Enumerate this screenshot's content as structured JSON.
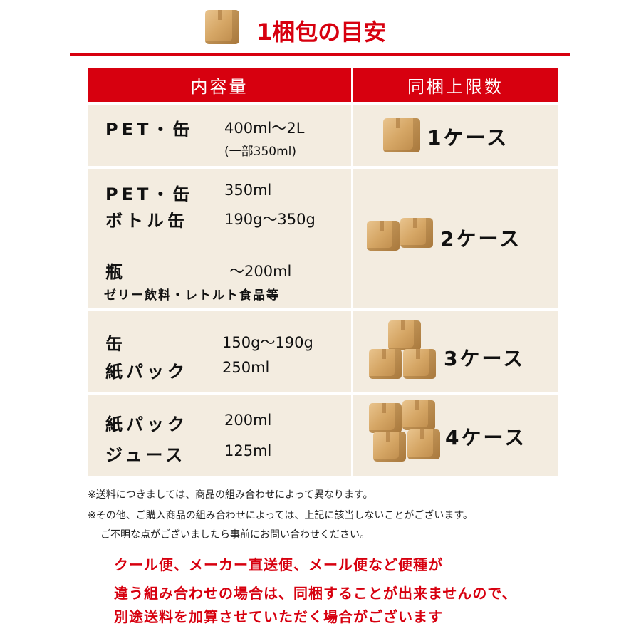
{
  "title": "1梱包の目安",
  "header": {
    "content": "内容量",
    "limit": "同梱上限数"
  },
  "rows": [
    {
      "items": [
        {
          "label": "PET・缶",
          "value": "400ml〜2L",
          "sub": "(一部350ml)"
        }
      ],
      "cases": "1ケース"
    },
    {
      "items": [
        {
          "label": "PET・缶",
          "value": "350ml"
        },
        {
          "label": "ボトル缶",
          "value": "190g〜350g"
        },
        {
          "label": "瓶",
          "value": "〜200ml"
        }
      ],
      "note": "ゼリー飲料・レトルト食品等",
      "cases": "2ケース"
    },
    {
      "items": [
        {
          "label": "缶",
          "value": "150g〜190g"
        },
        {
          "label": "紙パック",
          "value": "250ml"
        }
      ],
      "cases": "3ケース"
    },
    {
      "items": [
        {
          "label": "紙パック",
          "value": "200ml"
        },
        {
          "label": "ジュース",
          "value": "125ml"
        }
      ],
      "cases": "4ケース"
    }
  ],
  "notes": [
    "※送料につきましては、商品の組み合わせによって異なります。",
    "※その他、ご購入商品の組み合わせによっては、上記に該当しないことがございます。",
    "ご不明な点がございましたら事前にお問い合わせください。"
  ],
  "warning": [
    "クール便、メーカー直送便、メール便など便種が",
    "違う組み合わせの場合は、同梱することが出来ませんので、",
    "別途送料を加算させていただく場合がございます"
  ],
  "colors": {
    "accent": "#d7000f",
    "cell": "#f3ece0"
  }
}
